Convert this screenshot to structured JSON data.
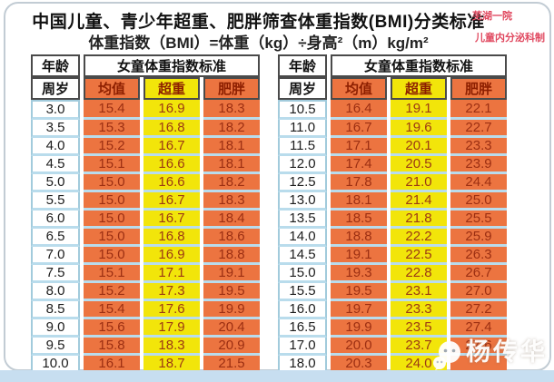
{
  "title": "中国儿童、青少年超重、肥胖筛查体重指数(BMI)分类标准",
  "formula": "体重指数（BMI）=体重（kg）÷身高²（m）kg/m²",
  "credit": {
    "line1": "芜湖一院",
    "line2": "儿童内分泌科制"
  },
  "watermark": {
    "label": "杨传华",
    "icon": "wechat-icon"
  },
  "colors": {
    "cell_orange": "#ec7440",
    "cell_yellow": "#f2e50a",
    "row_separator_blue": "#b9dcec",
    "credit_red": "#e0485f",
    "value_text_red": "#9c2f12",
    "bottom_band_blue": "#c7def0"
  },
  "tables": [
    {
      "header": {
        "age_top": "年龄",
        "age_bottom": "周岁",
        "group": "女童体重指数标准",
        "mean": "均值",
        "overweight": "超重",
        "obese": "肥胖"
      },
      "rows": [
        [
          "3.0",
          "15.4",
          "16.9",
          "18.3"
        ],
        [
          "3.5",
          "15.3",
          "16.8",
          "18.2"
        ],
        [
          "4.0",
          "15.2",
          "16.7",
          "18.1"
        ],
        [
          "4.5",
          "15.1",
          "16.6",
          "18.1"
        ],
        [
          "5.0",
          "15.0",
          "16.6",
          "18.2"
        ],
        [
          "5.5",
          "15.0",
          "16.7",
          "18.3"
        ],
        [
          "6.0",
          "15.0",
          "16.7",
          "18.4"
        ],
        [
          "6.5",
          "15.0",
          "16.8",
          "18.6"
        ],
        [
          "7.0",
          "15.0",
          "16.9",
          "18.8"
        ],
        [
          "7.5",
          "15.1",
          "17.1",
          "19.1"
        ],
        [
          "8.0",
          "15.2",
          "17.3",
          "19.5"
        ],
        [
          "8.5",
          "15.4",
          "17.6",
          "19.9"
        ],
        [
          "9.0",
          "15.6",
          "17.9",
          "20.4"
        ],
        [
          "9.5",
          "15.8",
          "18.3",
          "20.9"
        ],
        [
          "10.0",
          "16.1",
          "18.7",
          "21.5"
        ]
      ]
    },
    {
      "header": {
        "age_top": "年龄",
        "age_bottom": "周岁",
        "group": "女童体重指数标准",
        "mean": "均值",
        "overweight": "超重",
        "obese": "肥胖"
      },
      "rows": [
        [
          "10.5",
          "16.4",
          "19.1",
          "22.1"
        ],
        [
          "11.0",
          "16.7",
          "19.6",
          "22.7"
        ],
        [
          "11.5",
          "17.1",
          "20.1",
          "23.3"
        ],
        [
          "12.0",
          "17.4",
          "20.5",
          "23.9"
        ],
        [
          "12.5",
          "17.8",
          "21.0",
          "24.4"
        ],
        [
          "13.0",
          "18.1",
          "21.4",
          "25.0"
        ],
        [
          "13.5",
          "18.5",
          "21.8",
          "25.5"
        ],
        [
          "14.0",
          "18.8",
          "22.2",
          "25.9"
        ],
        [
          "14.5",
          "19.1",
          "22.5",
          "26.3"
        ],
        [
          "15.0",
          "19.3",
          "22.8",
          "26.7"
        ],
        [
          "15.5",
          "19.5",
          "23.1",
          "27.0"
        ],
        [
          "16.0",
          "19.7",
          "23.3",
          "27.2"
        ],
        [
          "16.5",
          "19.9",
          "23.5",
          "27.4"
        ],
        [
          "17.0",
          "20.0",
          "23.7",
          "27.6"
        ],
        [
          "18.0",
          "20.3",
          "24.0",
          ""
        ]
      ]
    }
  ]
}
